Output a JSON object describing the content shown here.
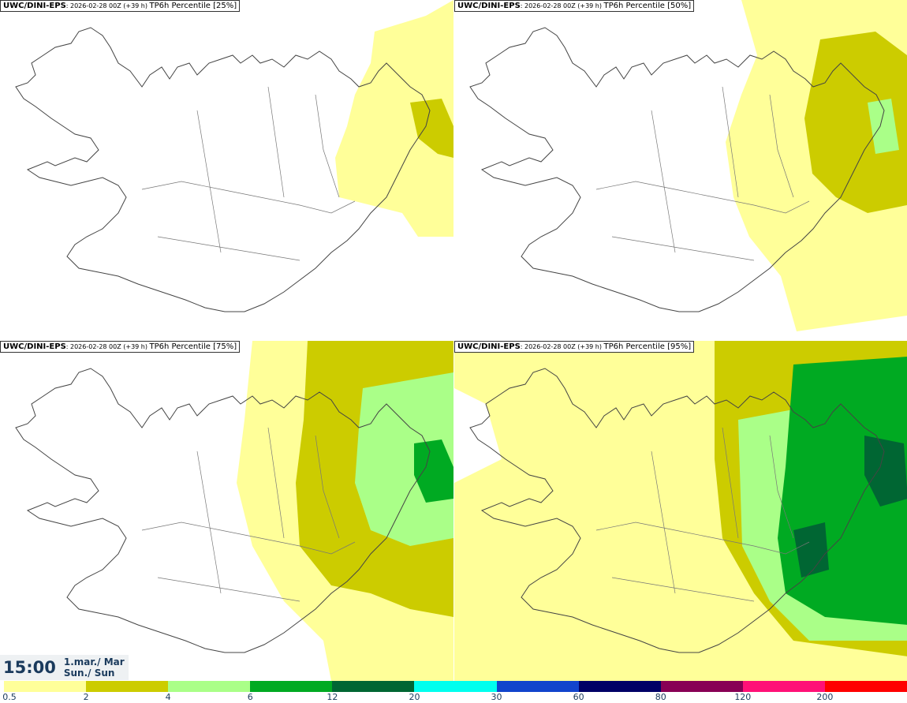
{
  "panels": [
    {
      "model": "UWC/DINI-EPS",
      "meta": ": 2026-02-28 00Z (+39 h) ",
      "product": "TP6h Percentile [25%]"
    },
    {
      "model": "UWC/DINI-EPS",
      "meta": ": 2026-02-28 00Z (+39 h) ",
      "product": "TP6h Percentile [50%]"
    },
    {
      "model": "UWC/DINI-EPS",
      "meta": ": 2026-02-28 00Z (+39 h) ",
      "product": "TP6h Percentile [75%]"
    },
    {
      "model": "UWC/DINI-EPS",
      "meta": ": 2026-02-28 00Z (+39 h) ",
      "product": "TP6h Percentile [95%]"
    }
  ],
  "valid_time": {
    "time": "15:00",
    "date_line1": "1.mar./ Mar",
    "date_line2": "Sun./ Sun"
  },
  "legend": {
    "ticks": [
      "0.5",
      "2",
      "4",
      "6",
      "12",
      "20",
      "30",
      "60",
      "80",
      "120",
      "200"
    ],
    "colors": [
      "#ffff99",
      "#cccc00",
      "#aaff88",
      "#00aa22",
      "#006633",
      "#00ffee",
      "#1144cc",
      "#000066",
      "#880055",
      "#ff1177",
      "#ff0000"
    ]
  },
  "colors": {
    "level_0_5": "#ffff99",
    "level_2": "#cccc00",
    "level_4": "#aaff88",
    "level_6": "#00aa22",
    "level_12": "#006633",
    "text_accent": "#1a3a5c"
  }
}
